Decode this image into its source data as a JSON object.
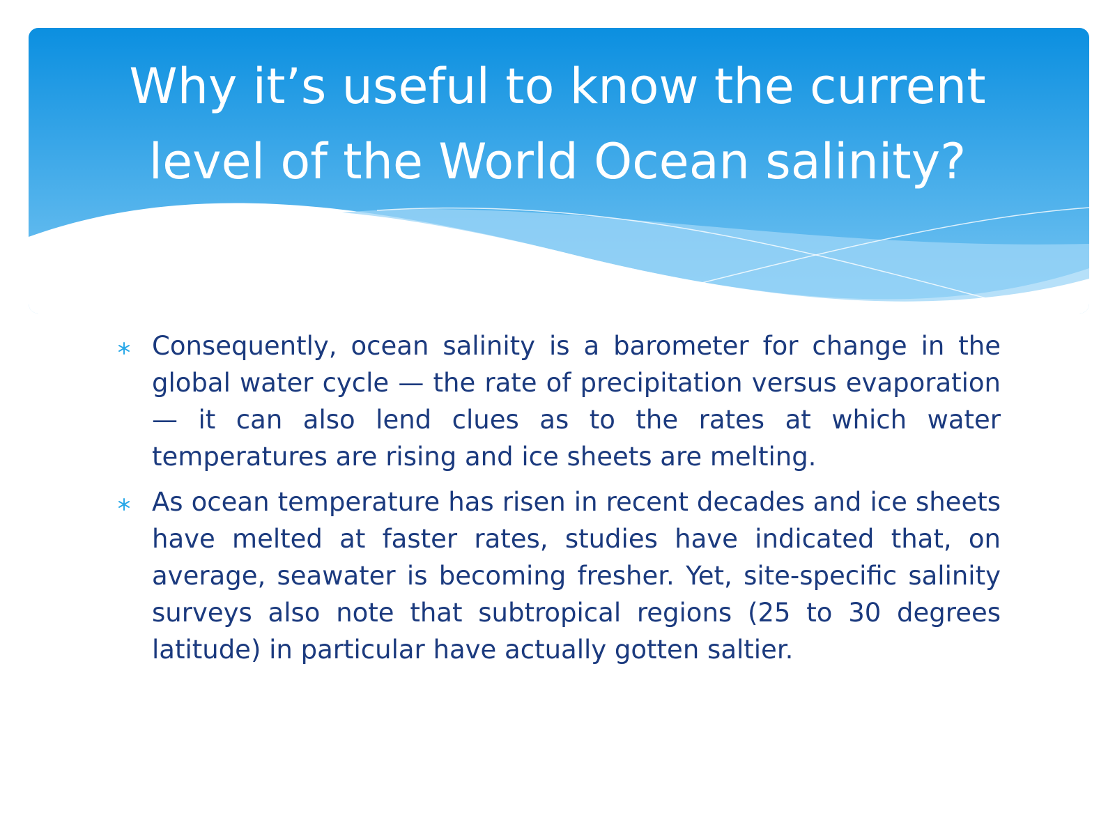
{
  "header": {
    "title": "Why it’s useful to know the current level of the World Ocean salinity?"
  },
  "bullets": [
    "Consequently, ocean salinity is a barometer for change in the global water cycle — the rate of precipitation versus evaporation — it can also lend clues as to the rates at which water temperatures are rising and ice sheets are melting.",
    "As ocean temperature has risen in recent decades and ice sheets have melted at faster rates, studies have indicated that, on average, seawater is becoming fresher. Yet, site-specific salinity surveys also note that subtropical regions (25 to 30 degrees latitude) in particular have actually gotten saltier."
  ]
}
